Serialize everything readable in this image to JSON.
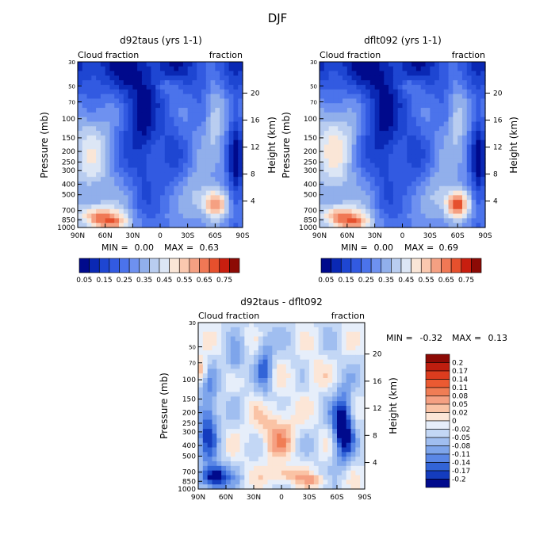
{
  "page_title": "DJF",
  "chart_data": [
    {
      "type": "heatmap",
      "title": "d92taus (yrs 1-1)",
      "left_subtitle": "Cloud fraction",
      "right_subtitle": "fraction",
      "xlabel": "",
      "ylabel": "Pressure (mb)",
      "right_ylabel": "Height (km)",
      "x_ticks": [
        "90N",
        "60N",
        "30N",
        "0",
        "30S",
        "60S",
        "90S"
      ],
      "y_ticks": [
        "30",
        "50",
        "70",
        "100",
        "150",
        "200",
        "250",
        "300",
        "400",
        "500",
        "700",
        "850",
        "1000"
      ],
      "height_ticks": [
        "20",
        "16",
        "12",
        "8",
        "4"
      ],
      "stats": {
        "min_label": "MIN =",
        "min": "0.00",
        "max_label": "MAX =",
        "max": "0.63"
      },
      "colorbar": {
        "orientation": "horizontal",
        "labels": [
          "0.05",
          "0.15",
          "0.25",
          "0.35",
          "0.45",
          "0.55",
          "0.65",
          "0.75"
        ],
        "colors": [
          "#000a8c",
          "#0a28b4",
          "#1e46d2",
          "#325ae1",
          "#4b73eb",
          "#6e91f0",
          "#91afeb",
          "#b9cdf0",
          "#dce6f5",
          "#fae6d7",
          "#fac8af",
          "#f5a082",
          "#f07855",
          "#e6502d",
          "#c81e0f",
          "#8c0a05"
        ]
      },
      "color_scale": [
        "#000a8c",
        "#0a28b4",
        "#1e46d2",
        "#325ae1",
        "#4b73eb",
        "#6e91f0",
        "#91afeb",
        "#b9cdf0",
        "#dce6f5",
        "#fae6d7",
        "#fac8af",
        "#f5a082",
        "#f07855",
        "#e6502d",
        "#c81e0f",
        "#8c0a05"
      ],
      "value_range": [
        0,
        0.8
      ]
    },
    {
      "type": "heatmap",
      "title": "dflt092 (yrs 1-1)",
      "left_subtitle": "Cloud fraction",
      "right_subtitle": "fraction",
      "xlabel": "",
      "ylabel": "Pressure (mb)",
      "right_ylabel": "Height (km)",
      "x_ticks": [
        "90N",
        "60N",
        "30N",
        "0",
        "30S",
        "60S",
        "90S"
      ],
      "y_ticks": [
        "30",
        "50",
        "70",
        "100",
        "150",
        "200",
        "250",
        "300",
        "400",
        "500",
        "700",
        "850",
        "1000"
      ],
      "height_ticks": [
        "20",
        "16",
        "12",
        "8",
        "4"
      ],
      "stats": {
        "min_label": "MIN =",
        "min": "0.00",
        "max_label": "MAX =",
        "max": "0.69"
      },
      "colorbar": {
        "orientation": "horizontal",
        "labels": [
          "0.05",
          "0.15",
          "0.25",
          "0.35",
          "0.45",
          "0.55",
          "0.65",
          "0.75"
        ],
        "colors": [
          "#000a8c",
          "#0a28b4",
          "#1e46d2",
          "#325ae1",
          "#4b73eb",
          "#6e91f0",
          "#91afeb",
          "#b9cdf0",
          "#dce6f5",
          "#fae6d7",
          "#fac8af",
          "#f5a082",
          "#f07855",
          "#e6502d",
          "#c81e0f",
          "#8c0a05"
        ]
      },
      "color_scale": [
        "#000a8c",
        "#0a28b4",
        "#1e46d2",
        "#325ae1",
        "#4b73eb",
        "#6e91f0",
        "#91afeb",
        "#b9cdf0",
        "#dce6f5",
        "#fae6d7",
        "#fac8af",
        "#f5a082",
        "#f07855",
        "#e6502d",
        "#c81e0f",
        "#8c0a05"
      ],
      "value_range": [
        0,
        0.8
      ]
    },
    {
      "type": "heatmap",
      "title": "d92taus - dflt092",
      "left_subtitle": "Cloud fraction",
      "right_subtitle": "fraction",
      "xlabel": "",
      "ylabel": "Pressure (mb)",
      "right_ylabel": "Height (km)",
      "x_ticks": [
        "90N",
        "60N",
        "30N",
        "0",
        "30S",
        "60S",
        "90S"
      ],
      "y_ticks": [
        "30",
        "50",
        "70",
        "100",
        "150",
        "200",
        "250",
        "300",
        "400",
        "500",
        "700",
        "850",
        "1000"
      ],
      "height_ticks": [
        "20",
        "16",
        "12",
        "8",
        "4"
      ],
      "stats": {
        "min_label": "MIN =",
        "min": "-0.32",
        "max_label": "MAX =",
        "max": "0.13"
      },
      "colorbar": {
        "orientation": "vertical",
        "labels": [
          "0.2",
          "0.17",
          "0.14",
          "0.11",
          "0.08",
          "0.05",
          "0.02",
          "0",
          "-0.02",
          "-0.05",
          "-0.08",
          "-0.11",
          "-0.14",
          "-0.17",
          "-0.2"
        ],
        "colors": [
          "#8c0a05",
          "#be1e0f",
          "#dc3c1e",
          "#eb5a32",
          "#f07d55",
          "#f5a082",
          "#fac3a5",
          "#fce6d7",
          "#e6eefa",
          "#c3d7f5",
          "#a0bef0",
          "#7ea5eb",
          "#5a87e6",
          "#3264d7",
          "#143cbe",
          "#000a8c"
        ]
      },
      "color_scale": [
        "#000a8c",
        "#143cbe",
        "#3264d7",
        "#5a87e6",
        "#7ea5eb",
        "#a0bef0",
        "#c3d7f5",
        "#e6eefa",
        "#fce6d7",
        "#fac3a5",
        "#f5a082",
        "#f07d55",
        "#eb5a32",
        "#dc3c1e",
        "#be1e0f",
        "#8c0a05"
      ],
      "value_range": [
        -0.22,
        0.22
      ]
    }
  ]
}
